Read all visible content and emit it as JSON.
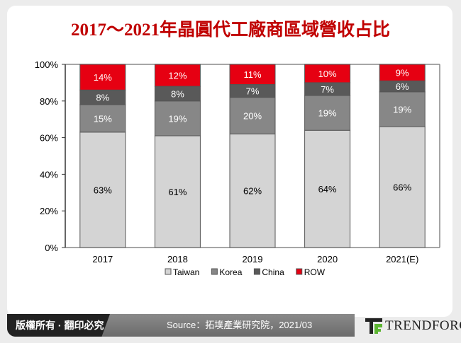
{
  "title": "2017～2021年晶圓代工廠商區域營收占比",
  "chart_data": {
    "type": "bar",
    "stacked": true,
    "categories": [
      "2017",
      "2018",
      "2019",
      "2020",
      "2021(E)"
    ],
    "series": [
      {
        "name": "Taiwan",
        "color": "#d4d4d4",
        "values": [
          63,
          61,
          62,
          64,
          66
        ]
      },
      {
        "name": "Korea",
        "color": "#878787",
        "values": [
          15,
          19,
          20,
          19,
          19
        ]
      },
      {
        "name": "China",
        "color": "#595959",
        "values": [
          8,
          8,
          7,
          7,
          6
        ]
      },
      {
        "name": "ROW",
        "color": "#e60012",
        "values": [
          14,
          12,
          11,
          10,
          9
        ]
      }
    ],
    "yticks": [
      "0%",
      "20%",
      "40%",
      "60%",
      "80%",
      "100%"
    ],
    "ylim": [
      0,
      100
    ],
    "legend": "bottom",
    "grid": false
  },
  "footer": {
    "copyright": "版權所有 · 翻印必究",
    "source": "Source：拓墣產業研究院，2021/03",
    "brand": "TRENDFORCE"
  }
}
